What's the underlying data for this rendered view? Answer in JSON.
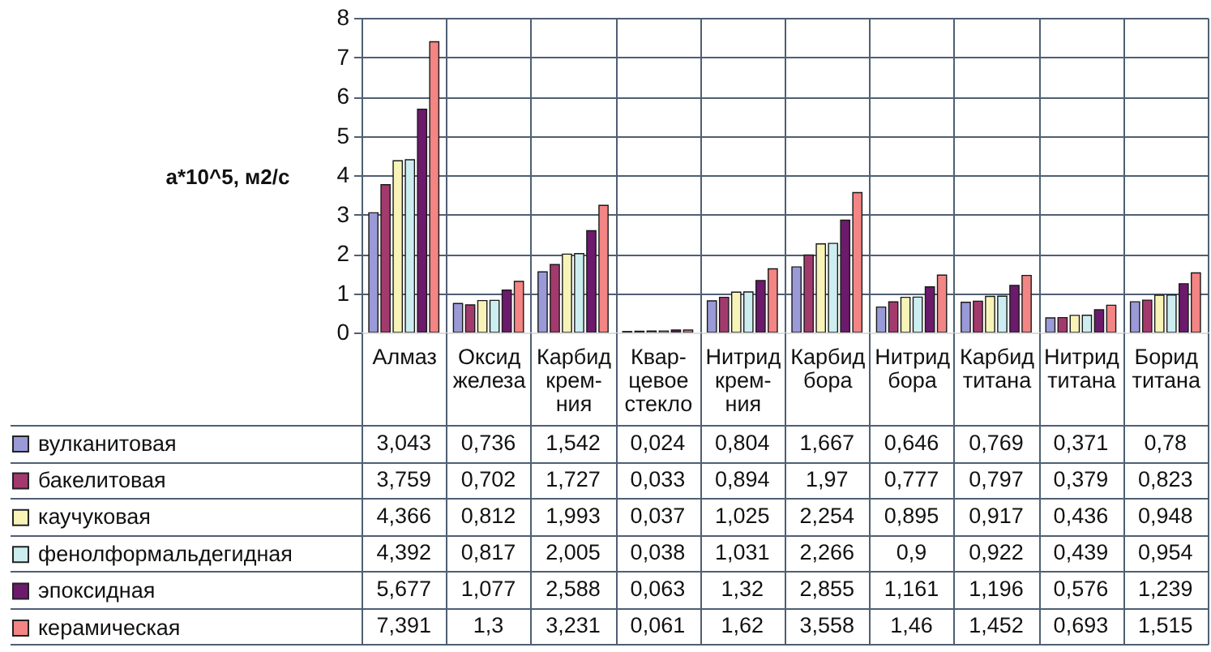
{
  "chart_data": {
    "type": "bar",
    "ylabel": "a*10^5, м2/с",
    "categories": [
      "Алмаз",
      "Оксид\nжелеза",
      "Карбид\nкрем-\nния",
      "Квар-\nцевое\nстекло",
      "Нитрид\nкрем-\nния",
      "Карбид\nбора",
      "Нитрид\nбора",
      "Карбид\nтитана",
      "Нитрид\nтитана",
      "Борид\nтитана"
    ],
    "series": [
      {
        "name": "вулканитовая",
        "color": "#9a9ad8",
        "values": [
          3.043,
          0.736,
          1.542,
          0.024,
          0.804,
          1.667,
          0.646,
          0.769,
          0.371,
          0.78
        ],
        "value_labels": [
          "3,043",
          "0,736",
          "1,542",
          "0,024",
          "0,804",
          "1,667",
          "0,646",
          "0,769",
          "0,371",
          "0,78"
        ]
      },
      {
        "name": "бакелитовая",
        "color": "#a33a6e",
        "values": [
          3.759,
          0.702,
          1.727,
          0.033,
          0.894,
          1.97,
          0.777,
          0.797,
          0.379,
          0.823
        ],
        "value_labels": [
          "3,759",
          "0,702",
          "1,727",
          "0,033",
          "0,894",
          "1,97",
          "0,777",
          "0,797",
          "0,379",
          "0,823"
        ]
      },
      {
        "name": "каучуковая",
        "color": "#f8f4b8",
        "values": [
          4.366,
          0.812,
          1.993,
          0.037,
          1.025,
          2.254,
          0.895,
          0.917,
          0.436,
          0.948
        ],
        "value_labels": [
          "4,366",
          "0,812",
          "1,993",
          "0,037",
          "1,025",
          "2,254",
          "0,895",
          "0,917",
          "0,436",
          "0,948"
        ]
      },
      {
        "name": "фенолформальдегидная",
        "color": "#cdeef0",
        "values": [
          4.392,
          0.817,
          2.005,
          0.038,
          1.031,
          2.266,
          0.9,
          0.922,
          0.439,
          0.954
        ],
        "value_labels": [
          "4,392",
          "0,817",
          "2,005",
          "0,038",
          "1,031",
          "2,266",
          "0,9",
          "0,922",
          "0,439",
          "0,954"
        ]
      },
      {
        "name": "эпоксидная",
        "color": "#6c1a6c",
        "values": [
          5.677,
          1.077,
          2.588,
          0.063,
          1.32,
          2.855,
          1.161,
          1.196,
          0.576,
          1.239
        ],
        "value_labels": [
          "5,677",
          "1,077",
          "2,588",
          "0,063",
          "1,32",
          "2,855",
          "1,161",
          "1,196",
          "0,576",
          "1,239"
        ]
      },
      {
        "name": "керамическая",
        "color": "#f38585",
        "values": [
          7.391,
          1.3,
          3.231,
          0.061,
          1.62,
          3.558,
          1.46,
          1.452,
          0.693,
          1.515
        ],
        "value_labels": [
          "7,391",
          "1,3",
          "3,231",
          "0,061",
          "1,62",
          "3,558",
          "1,46",
          "1,452",
          "0,693",
          "1,515"
        ]
      }
    ],
    "ylim": [
      0,
      8
    ],
    "yticks": [
      0,
      1,
      2,
      3,
      4,
      5,
      6,
      7,
      8
    ],
    "grid": true,
    "legend": "bottom left"
  }
}
